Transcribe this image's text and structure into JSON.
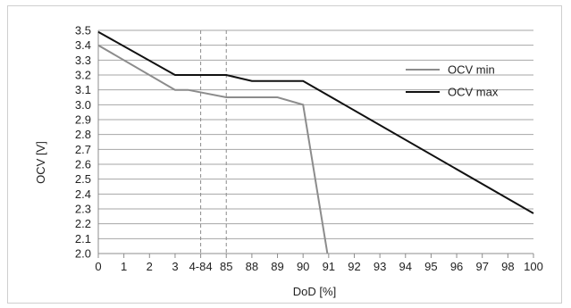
{
  "chart_data": {
    "type": "line",
    "xlabel": "DoD [%]",
    "ylabel": "OCV [V]",
    "categories": [
      "0",
      "1",
      "2",
      "3",
      "4-84",
      "85",
      "88",
      "89",
      "90",
      "91",
      "92",
      "93",
      "94",
      "95",
      "96",
      "97",
      "98",
      "100"
    ],
    "ylim": [
      2.0,
      3.5
    ],
    "yticks": [
      "2.0",
      "2.1",
      "2.2",
      "2.3",
      "2.4",
      "2.5",
      "2.6",
      "2.7",
      "2.8",
      "2.9",
      "3.0",
      "3.1",
      "3.2",
      "3.3",
      "3.4",
      "3.5"
    ],
    "grid": "horizontal",
    "reference_lines": [
      "4-84",
      "85"
    ],
    "legend_position": "right",
    "series": [
      {
        "name": "OCV min",
        "color": "#8c8c8c",
        "points": [
          [
            0,
            3.4
          ],
          [
            3,
            3.1
          ],
          [
            3.5,
            3.1
          ],
          [
            5,
            3.05
          ],
          [
            7,
            3.05
          ],
          [
            8,
            3.0
          ],
          [
            8.95,
            2.0
          ]
        ]
      },
      {
        "name": "OCV max",
        "color": "#111111",
        "points": [
          [
            0,
            3.49
          ],
          [
            3,
            3.2
          ],
          [
            5,
            3.2
          ],
          [
            6,
            3.16
          ],
          [
            8,
            3.16
          ],
          [
            17,
            2.27
          ]
        ]
      }
    ]
  }
}
